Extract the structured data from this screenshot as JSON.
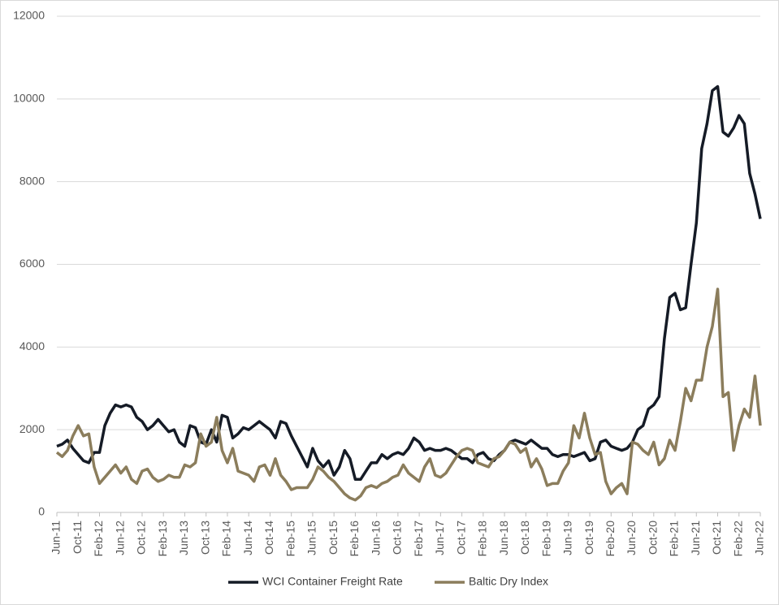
{
  "chart_data": {
    "type": "line",
    "categories": [
      "Jun-11",
      null,
      null,
      null,
      "Oct-11",
      null,
      null,
      null,
      "Feb-12",
      null,
      null,
      null,
      "Jun-12",
      null,
      null,
      null,
      "Oct-12",
      null,
      null,
      null,
      "Feb-13",
      null,
      null,
      null,
      "Jun-13",
      null,
      null,
      null,
      "Oct-13",
      null,
      null,
      null,
      "Feb-14",
      null,
      null,
      null,
      "Jun-14",
      null,
      null,
      null,
      "Oct-14",
      null,
      null,
      null,
      "Feb-15",
      null,
      null,
      null,
      "Jun-15",
      null,
      null,
      null,
      "Oct-15",
      null,
      null,
      null,
      "Feb-16",
      null,
      null,
      null,
      "Jun-16",
      null,
      null,
      null,
      "Oct-16",
      null,
      null,
      null,
      "Feb-17",
      null,
      null,
      null,
      "Jun-17",
      null,
      null,
      null,
      "Oct-17",
      null,
      null,
      null,
      "Feb-18",
      null,
      null,
      null,
      "Jun-18",
      null,
      null,
      null,
      "Oct-18",
      null,
      null,
      null,
      "Feb-19",
      null,
      null,
      null,
      "Jun-19",
      null,
      null,
      null,
      "Oct-19",
      null,
      null,
      null,
      "Feb-20",
      null,
      null,
      null,
      "Jun-20",
      null,
      null,
      null,
      "Oct-20",
      null,
      null,
      null,
      "Feb-21",
      null,
      null,
      null,
      "Jun-21",
      null,
      null,
      null,
      "Oct-21",
      null,
      null,
      null,
      "Feb-22",
      null,
      null,
      null,
      "Jun-22"
    ],
    "series": [
      {
        "name": "WCI Container Freight Rate",
        "color": "#151b26",
        "values": [
          1600,
          1650,
          1750,
          1550,
          1400,
          1250,
          1200,
          1450,
          1450,
          2100,
          2400,
          2600,
          2550,
          2600,
          2550,
          2300,
          2200,
          2000,
          2100,
          2250,
          2100,
          1950,
          2000,
          1700,
          1600,
          2100,
          2050,
          1700,
          1650,
          2000,
          1700,
          2350,
          2300,
          1800,
          1900,
          2050,
          2000,
          2100,
          2200,
          2100,
          2000,
          1800,
          2200,
          2150,
          1850,
          1600,
          1350,
          1100,
          1550,
          1250,
          1100,
          1250,
          900,
          1100,
          1500,
          1300,
          800,
          800,
          1000,
          1200,
          1200,
          1400,
          1300,
          1400,
          1450,
          1400,
          1550,
          1800,
          1700,
          1500,
          1550,
          1500,
          1500,
          1550,
          1500,
          1400,
          1300,
          1300,
          1200,
          1400,
          1450,
          1300,
          1250,
          1400,
          1500,
          1700,
          1750,
          1700,
          1650,
          1750,
          1650,
          1550,
          1550,
          1400,
          1350,
          1400,
          1400,
          1350,
          1400,
          1450,
          1250,
          1300,
          1700,
          1750,
          1600,
          1550,
          1500,
          1550,
          1700,
          2000,
          2100,
          2500,
          2600,
          2800,
          4200,
          5200,
          5300,
          4900,
          4950,
          6000,
          7000,
          8800,
          9400,
          10200,
          10300,
          9200,
          9100,
          9300,
          9600,
          9400,
          8200,
          7700,
          7100
        ]
      },
      {
        "name": "Baltic Dry Index",
        "color": "#8b7d5c",
        "values": [
          1450,
          1350,
          1500,
          1850,
          2100,
          1850,
          1900,
          1100,
          700,
          850,
          1000,
          1150,
          950,
          1100,
          800,
          700,
          1000,
          1050,
          850,
          750,
          800,
          900,
          850,
          850,
          1150,
          1100,
          1200,
          1900,
          1600,
          1700,
          2300,
          1500,
          1200,
          1550,
          1000,
          950,
          900,
          750,
          1100,
          1150,
          900,
          1300,
          900,
          750,
          550,
          600,
          600,
          600,
          800,
          1100,
          1000,
          850,
          750,
          600,
          450,
          350,
          300,
          400,
          600,
          650,
          600,
          700,
          750,
          850,
          900,
          1150,
          950,
          850,
          750,
          1100,
          1300,
          900,
          850,
          950,
          1150,
          1350,
          1500,
          1550,
          1500,
          1200,
          1150,
          1100,
          1300,
          1350,
          1500,
          1700,
          1650,
          1450,
          1550,
          1100,
          1300,
          1050,
          650,
          700,
          700,
          1000,
          1200,
          2100,
          1800,
          2400,
          1800,
          1400,
          1450,
          750,
          450,
          600,
          700,
          450,
          1700,
          1650,
          1500,
          1400,
          1700,
          1150,
          1300,
          1750,
          1500,
          2200,
          3000,
          2700,
          3200,
          3200,
          4000,
          4500,
          5400,
          2800,
          2900,
          1500,
          2100,
          2500,
          2300,
          3300,
          2100
        ]
      }
    ],
    "ylim": [
      0,
      12000
    ],
    "yticks": [
      0,
      2000,
      4000,
      6000,
      8000,
      10000,
      12000
    ],
    "grid": true,
    "legend": "bottom"
  }
}
